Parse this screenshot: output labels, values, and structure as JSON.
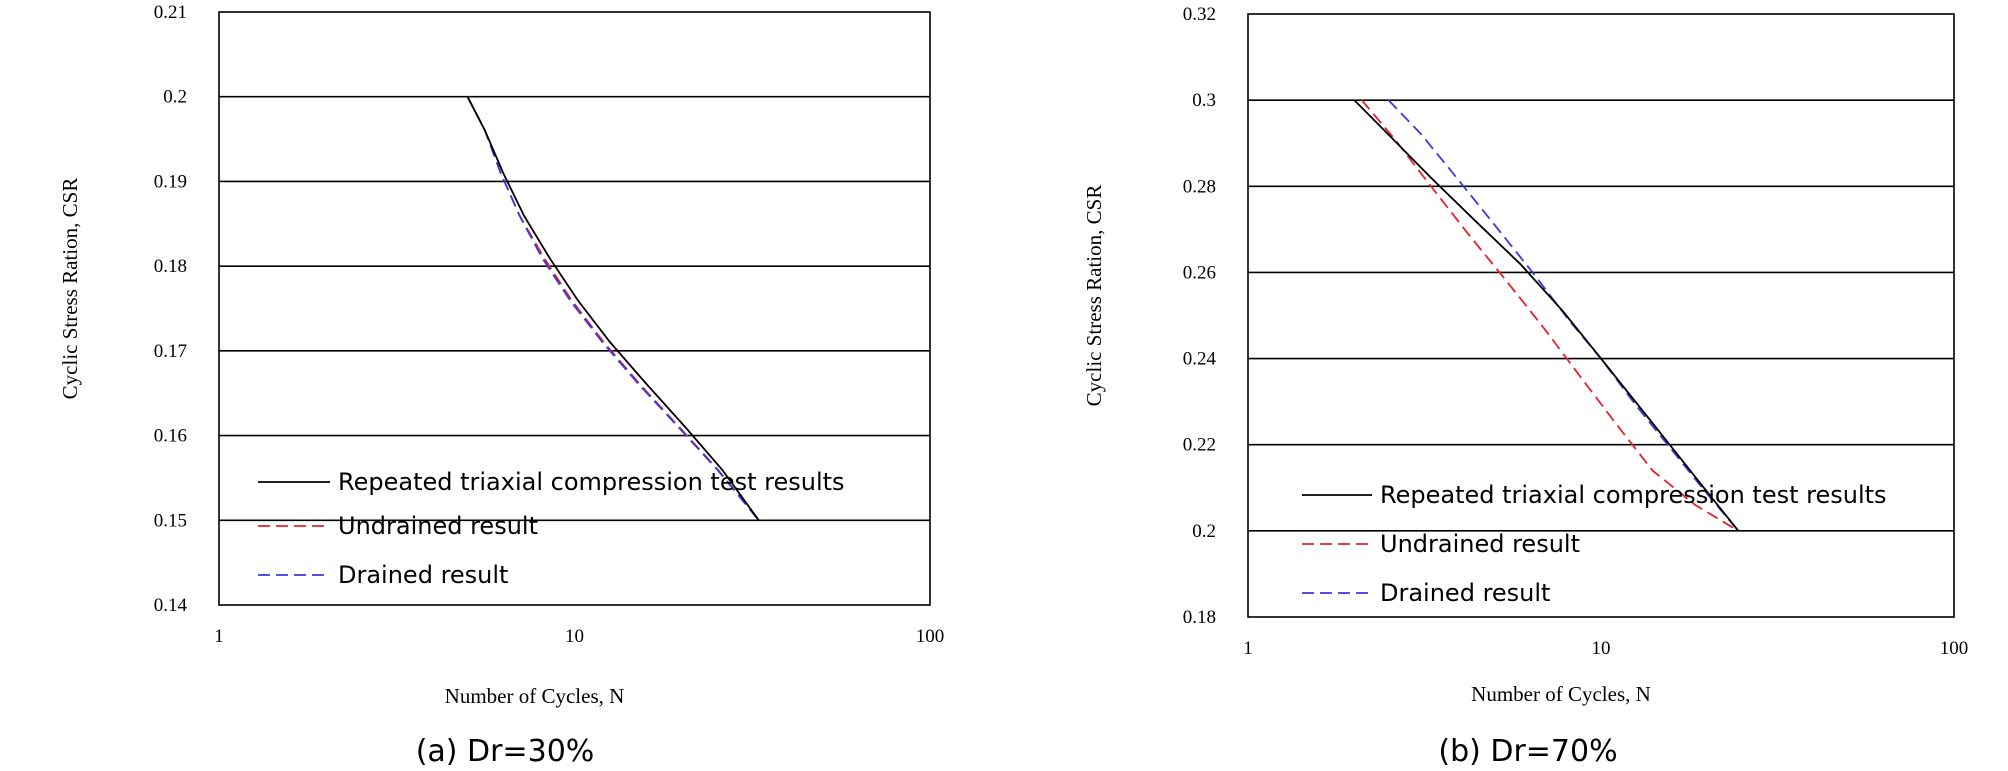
{
  "chart_data": [
    {
      "type": "line",
      "caption": "(a)  Dr=30%",
      "xlabel": "Number of Cycles, N",
      "ylabel": "Cyclic Stress Ration, CSR",
      "xscale": "log",
      "xlim": [
        1,
        100
      ],
      "ylim": [
        0.14,
        0.21
      ],
      "xticks": [
        1,
        10,
        100
      ],
      "xtick_labels": [
        "1",
        "10",
        "100"
      ],
      "yticks": [
        0.14,
        0.15,
        0.16,
        0.17,
        0.18,
        0.19,
        0.2,
        0.21
      ],
      "ytick_labels": [
        "0.14",
        "0.15",
        "0.16",
        "0.17",
        "0.18",
        "0.19",
        "0.2",
        "0.21"
      ],
      "grid": "horizontal",
      "legend_position": "bottom-left",
      "series": [
        {
          "name": "Repeated triaxial compression test results",
          "color": "#000000",
          "dash": "solid",
          "x": [
            5.0,
            5.6,
            6.3,
            7.2,
            8.5,
            10.2,
            12.6,
            16.0,
            20.5,
            26.0,
            33.0
          ],
          "y": [
            0.2,
            0.196,
            0.191,
            0.186,
            0.181,
            0.176,
            0.171,
            0.166,
            0.161,
            0.156,
            0.15
          ]
        },
        {
          "name": "Undrained result",
          "color": "#e8202a",
          "dash": "dashed",
          "x": [
            5.0,
            5.6,
            6.2,
            7.0,
            8.2,
            9.8,
            12.1,
            15.3,
            19.7,
            25.3,
            33.0
          ],
          "y": [
            0.2,
            0.196,
            0.191,
            0.186,
            0.181,
            0.176,
            0.171,
            0.166,
            0.161,
            0.156,
            0.15
          ]
        },
        {
          "name": "Drained result",
          "color": "#3a3ae0",
          "dash": "dashed",
          "x": [
            5.0,
            5.6,
            6.2,
            7.0,
            8.1,
            9.7,
            12.0,
            15.2,
            19.6,
            25.2,
            33.0
          ],
          "y": [
            0.2,
            0.196,
            0.191,
            0.186,
            0.181,
            0.176,
            0.171,
            0.166,
            0.161,
            0.156,
            0.15
          ]
        }
      ]
    },
    {
      "type": "line",
      "caption": "(b)  Dr=70%",
      "xlabel": "Number of Cycles, N",
      "ylabel": "Cyclic Stress Ration, CSR",
      "xscale": "log",
      "xlim": [
        1,
        100
      ],
      "ylim": [
        0.18,
        0.32
      ],
      "xticks": [
        1,
        10,
        100
      ],
      "xtick_labels": [
        "1",
        "10",
        "100"
      ],
      "yticks": [
        0.18,
        0.2,
        0.22,
        0.24,
        0.26,
        0.28,
        0.3,
        0.32
      ],
      "ytick_labels": [
        "0.18",
        "0.2",
        "0.22",
        "0.24",
        "0.26",
        "0.28",
        "0.3",
        "0.32"
      ],
      "grid": "horizontal",
      "legend_position": "bottom-left",
      "series": [
        {
          "name": "Repeated triaxial compression test results",
          "color": "#000000",
          "dash": "solid",
          "x": [
            2.0,
            2.5,
            3.3,
            4.4,
            5.9,
            7.8,
            10.0,
            12.8,
            16.0,
            20.0,
            24.5
          ],
          "y": [
            0.3,
            0.292,
            0.282,
            0.272,
            0.262,
            0.251,
            0.24,
            0.229,
            0.219,
            0.209,
            0.2
          ]
        },
        {
          "name": "Undrained result",
          "color": "#e8202a",
          "dash": "dashed",
          "x": [
            2.1,
            2.6,
            3.3,
            4.2,
            5.4,
            6.9,
            8.7,
            11.0,
            14.0,
            18.5,
            24.5
          ],
          "y": [
            0.3,
            0.291,
            0.28,
            0.269,
            0.258,
            0.247,
            0.236,
            0.225,
            0.214,
            0.206,
            0.2
          ]
        },
        {
          "name": "Drained result",
          "color": "#3a3ae0",
          "dash": "dashed",
          "x": [
            2.5,
            3.1,
            3.9,
            5.0,
            6.4,
            8.1,
            10.0,
            12.6,
            15.8,
            19.8,
            24.5
          ],
          "y": [
            0.3,
            0.292,
            0.282,
            0.271,
            0.26,
            0.249,
            0.24,
            0.229,
            0.219,
            0.209,
            0.2
          ]
        }
      ]
    }
  ]
}
